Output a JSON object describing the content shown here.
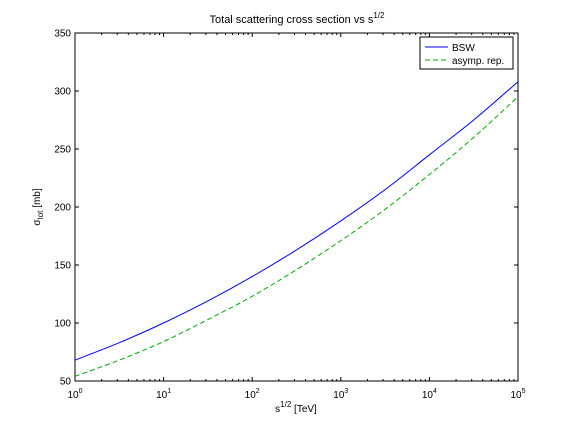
{
  "chart_data": {
    "type": "line",
    "title": "Total scattering cross section vs s",
    "title_sup": "1/2",
    "xlabel": "s",
    "xlabel_sup": "1/2",
    "xlabel_unit": " [TeV]",
    "ylabel": "σ",
    "ylabel_sub": "tot",
    "ylabel_unit": " [mb]",
    "xscale": "log",
    "xlim": [
      1,
      100000
    ],
    "ylim": [
      50,
      350
    ],
    "grid": false,
    "legend_position": "top-right",
    "xticks": [
      {
        "value": 1,
        "base": "10",
        "exp": "0"
      },
      {
        "value": 10,
        "base": "10",
        "exp": "1"
      },
      {
        "value": 100,
        "base": "10",
        "exp": "2"
      },
      {
        "value": 1000,
        "base": "10",
        "exp": "3"
      },
      {
        "value": 10000,
        "base": "10",
        "exp": "4"
      },
      {
        "value": 100000,
        "base": "10",
        "exp": "5"
      }
    ],
    "yticks": [
      50,
      100,
      150,
      200,
      250,
      300,
      350
    ],
    "x": [
      1,
      3.162,
      10,
      31.62,
      100,
      316.2,
      1000,
      3162,
      10000,
      31620,
      100000
    ],
    "series": [
      {
        "name": "BSW",
        "color": "#0000ff",
        "style": "solid",
        "values": [
          68,
          83,
          100,
          119,
          140,
          163,
          188,
          215,
          245,
          275,
          308
        ]
      },
      {
        "name": "asymp. rep.",
        "color": "#00aa00",
        "style": "dashed",
        "values": [
          54,
          68,
          84,
          103,
          123,
          146,
          171,
          198,
          228,
          260,
          295
        ]
      }
    ]
  }
}
